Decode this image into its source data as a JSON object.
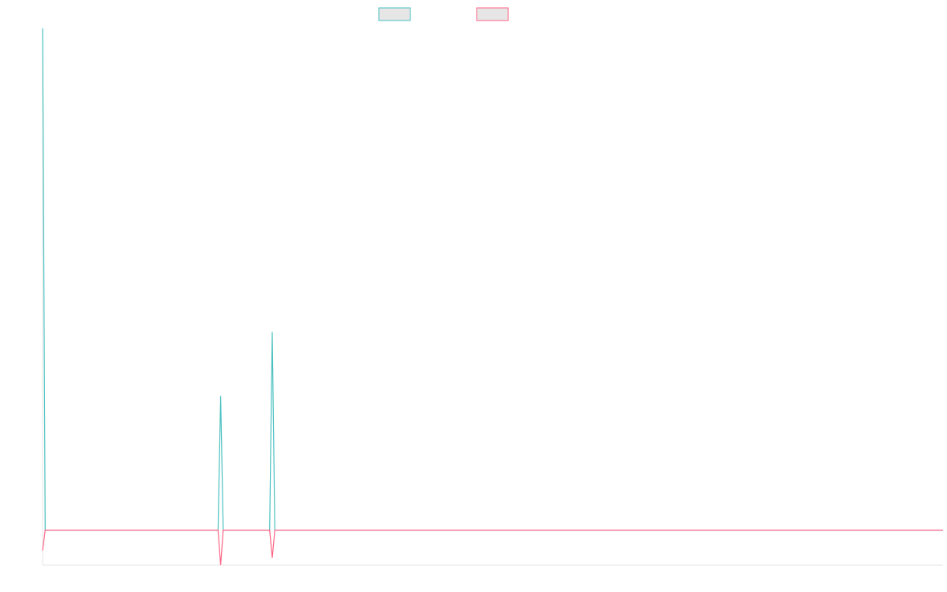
{
  "chart_data": {
    "type": "line",
    "title": "",
    "xlabel": "",
    "ylabel": "",
    "grid": false,
    "legend_position": "top-center",
    "x_count": 350,
    "ylim": [
      -1.2,
      17.2
    ],
    "series": [
      {
        "color": "#4bc0c0",
        "legend_fill": "#e6e6e6",
        "default_value": 0,
        "spikes": [
          [
            0,
            17.2
          ],
          [
            69,
            4.6
          ],
          [
            89,
            6.8
          ]
        ]
      },
      {
        "color": "#ff6384",
        "legend_fill": "#e6e6e6",
        "default_value": 0,
        "spikes": [
          [
            0,
            -0.7
          ],
          [
            69,
            -1.2
          ],
          [
            89,
            -0.95
          ]
        ]
      }
    ]
  }
}
